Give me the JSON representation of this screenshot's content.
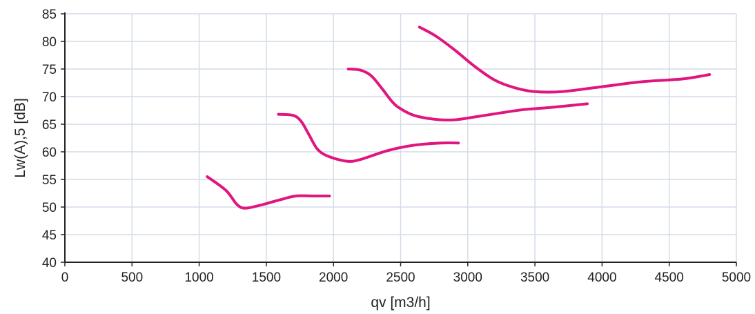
{
  "colors": {
    "series": "#e0157f",
    "grid": "#d4dce8",
    "axis": "#222222",
    "background": "#ffffff"
  },
  "chart_data": {
    "type": "line",
    "title": "",
    "xlabel": "qv [m3/h]",
    "ylabel": "Lw(A),5 [dB]",
    "xlim": [
      0,
      5000
    ],
    "ylim": [
      40,
      85
    ],
    "xticks": [
      0,
      500,
      1000,
      1500,
      2000,
      2500,
      3000,
      3500,
      4000,
      4500,
      5000
    ],
    "yticks": [
      40,
      45,
      50,
      55,
      60,
      65,
      70,
      75,
      80,
      85
    ],
    "grid": true,
    "legend": "none",
    "series": [
      {
        "points": [
          [
            1060,
            55.5
          ],
          [
            1200,
            53.0
          ],
          [
            1280,
            50.5
          ],
          [
            1340,
            49.8
          ],
          [
            1450,
            50.3
          ],
          [
            1600,
            51.3
          ],
          [
            1720,
            52.0
          ],
          [
            1850,
            52.0
          ],
          [
            1970,
            52.0
          ]
        ]
      },
      {
        "points": [
          [
            1590,
            66.8
          ],
          [
            1700,
            66.6
          ],
          [
            1760,
            65.5
          ],
          [
            1820,
            63.0
          ],
          [
            1880,
            60.5
          ],
          [
            1960,
            59.2
          ],
          [
            2100,
            58.3
          ],
          [
            2200,
            58.6
          ],
          [
            2400,
            60.2
          ],
          [
            2600,
            61.2
          ],
          [
            2800,
            61.6
          ],
          [
            2930,
            61.6
          ]
        ]
      },
      {
        "points": [
          [
            2110,
            75.0
          ],
          [
            2200,
            74.8
          ],
          [
            2280,
            73.8
          ],
          [
            2360,
            71.5
          ],
          [
            2440,
            69.0
          ],
          [
            2500,
            67.8
          ],
          [
            2600,
            66.6
          ],
          [
            2750,
            65.9
          ],
          [
            2900,
            65.8
          ],
          [
            3100,
            66.5
          ],
          [
            3400,
            67.6
          ],
          [
            3600,
            68.0
          ],
          [
            3890,
            68.7
          ]
        ]
      },
      {
        "points": [
          [
            2640,
            82.6
          ],
          [
            2760,
            81.0
          ],
          [
            2900,
            78.5
          ],
          [
            3050,
            75.5
          ],
          [
            3200,
            73.0
          ],
          [
            3350,
            71.6
          ],
          [
            3500,
            70.9
          ],
          [
            3700,
            70.9
          ],
          [
            4000,
            71.8
          ],
          [
            4300,
            72.7
          ],
          [
            4600,
            73.2
          ],
          [
            4800,
            74.0
          ]
        ]
      }
    ]
  }
}
